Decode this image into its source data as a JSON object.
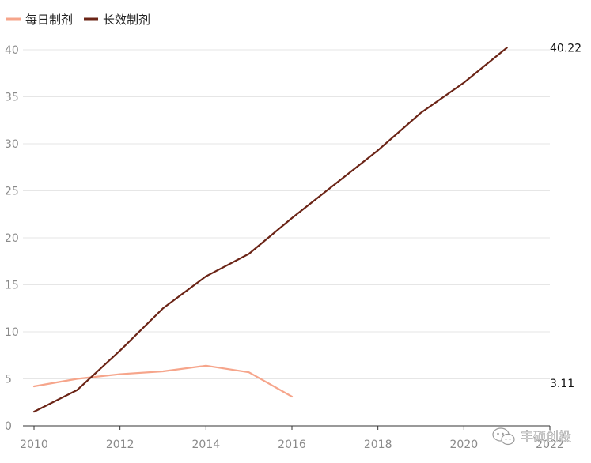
{
  "chart_data": {
    "type": "line",
    "title": "",
    "xlabel": "",
    "ylabel": "",
    "x": [
      2010,
      2011,
      2012,
      2013,
      2014,
      2015,
      2016,
      2017,
      2018,
      2019,
      2020,
      2021
    ],
    "xlim": [
      2010,
      2022
    ],
    "ylim": [
      0,
      40
    ],
    "x_ticks": [
      "2010",
      "2012",
      "2014",
      "2016",
      "2018",
      "2020",
      "2022"
    ],
    "y_ticks": [
      "0",
      "5",
      "10",
      "15",
      "20",
      "25",
      "30",
      "35",
      "40"
    ],
    "grid": "horizontal",
    "legend_position": "top-left",
    "series": [
      {
        "name": "每日制剂",
        "color": "#f6a58b",
        "values": [
          4.2,
          5.0,
          5.5,
          5.8,
          6.4,
          5.7,
          3.11,
          null,
          null,
          null,
          null,
          null
        ],
        "end_label": "3.11"
      },
      {
        "name": "长效制剂",
        "color": "#6b2416",
        "values": [
          1.5,
          3.8,
          8.0,
          12.5,
          15.9,
          18.3,
          22.1,
          25.7,
          29.3,
          33.3,
          36.5,
          40.22
        ],
        "end_label": "40.22"
      }
    ]
  },
  "watermark": {
    "text": "丰硕创投",
    "icon": "wechat-icon"
  }
}
